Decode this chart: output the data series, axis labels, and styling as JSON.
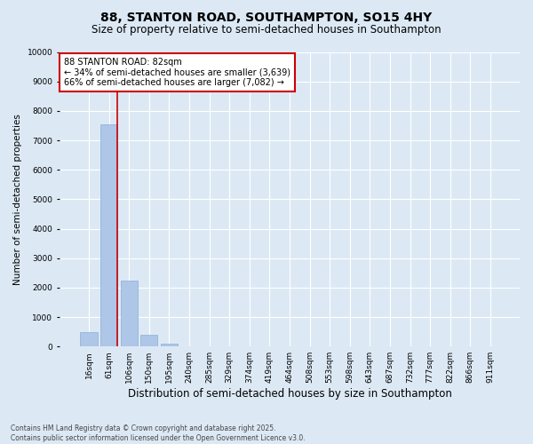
{
  "title_line1": "88, STANTON ROAD, SOUTHAMPTON, SO15 4HY",
  "title_line2": "Size of property relative to semi-detached houses in Southampton",
  "xlabel": "Distribution of semi-detached houses by size in Southampton",
  "ylabel": "Number of semi-detached properties",
  "categories": [
    "16sqm",
    "61sqm",
    "106sqm",
    "150sqm",
    "195sqm",
    "240sqm",
    "285sqm",
    "329sqm",
    "374sqm",
    "419sqm",
    "464sqm",
    "508sqm",
    "553sqm",
    "598sqm",
    "643sqm",
    "687sqm",
    "732sqm",
    "777sqm",
    "822sqm",
    "866sqm",
    "911sqm"
  ],
  "values": [
    500,
    7550,
    2250,
    400,
    100,
    20,
    10,
    5,
    3,
    2,
    1,
    1,
    0,
    0,
    0,
    0,
    0,
    0,
    0,
    0,
    0
  ],
  "bar_color": "#aec6e8",
  "bar_edge_color": "#8ab0d0",
  "property_bar_index": 1,
  "red_line_color": "#cc0000",
  "annotation_text_line1": "88 STANTON ROAD: 82sqm",
  "annotation_text_line2": "← 34% of semi-detached houses are smaller (3,639)",
  "annotation_text_line3": "66% of semi-detached houses are larger (7,082) →",
  "annotation_box_facecolor": "#ffffff",
  "annotation_box_edgecolor": "#cc0000",
  "background_color": "#dce9f5",
  "grid_color": "#ffffff",
  "ylim": [
    0,
    10000
  ],
  "yticks": [
    0,
    1000,
    2000,
    3000,
    4000,
    5000,
    6000,
    7000,
    8000,
    9000,
    10000
  ],
  "footnote_line1": "Contains HM Land Registry data © Crown copyright and database right 2025.",
  "footnote_line2": "Contains public sector information licensed under the Open Government Licence v3.0.",
  "title_fontsize": 10,
  "subtitle_fontsize": 8.5,
  "ylabel_fontsize": 7.5,
  "xlabel_fontsize": 8.5,
  "tick_fontsize": 6.5,
  "annotation_fontsize": 7,
  "footnote_fontsize": 5.5
}
